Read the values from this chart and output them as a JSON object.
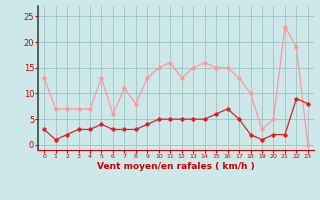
{
  "hours": [
    0,
    1,
    2,
    3,
    4,
    5,
    6,
    7,
    8,
    9,
    10,
    11,
    12,
    13,
    14,
    15,
    16,
    17,
    18,
    19,
    20,
    21,
    22,
    23
  ],
  "wind_avg": [
    3,
    1,
    2,
    3,
    3,
    4,
    3,
    3,
    3,
    4,
    5,
    5,
    5,
    5,
    5,
    6,
    7,
    5,
    2,
    1,
    2,
    2,
    9,
    8
  ],
  "wind_gust": [
    13,
    7,
    7,
    7,
    7,
    13,
    6,
    11,
    8,
    13,
    15,
    16,
    13,
    15,
    16,
    15,
    15,
    13,
    10,
    3,
    5,
    23,
    19,
    0
  ],
  "bg_color": "#cce8e8",
  "line_avg_color": "#dd2222",
  "line_gust_color": "#ff9999",
  "grid_color": "#99bbbb",
  "xlabel": "Vent moyen/en rafales ( km/h )",
  "xlabel_color": "#cc0000",
  "tick_color": "#cc0000",
  "ylim": [
    -1,
    27
  ],
  "yticks": [
    0,
    5,
    10,
    15,
    20,
    25
  ],
  "marker": "D",
  "marker_size": 1.8,
  "line_width": 0.9,
  "fig_width": 3.2,
  "fig_height": 2.0,
  "dpi": 100
}
